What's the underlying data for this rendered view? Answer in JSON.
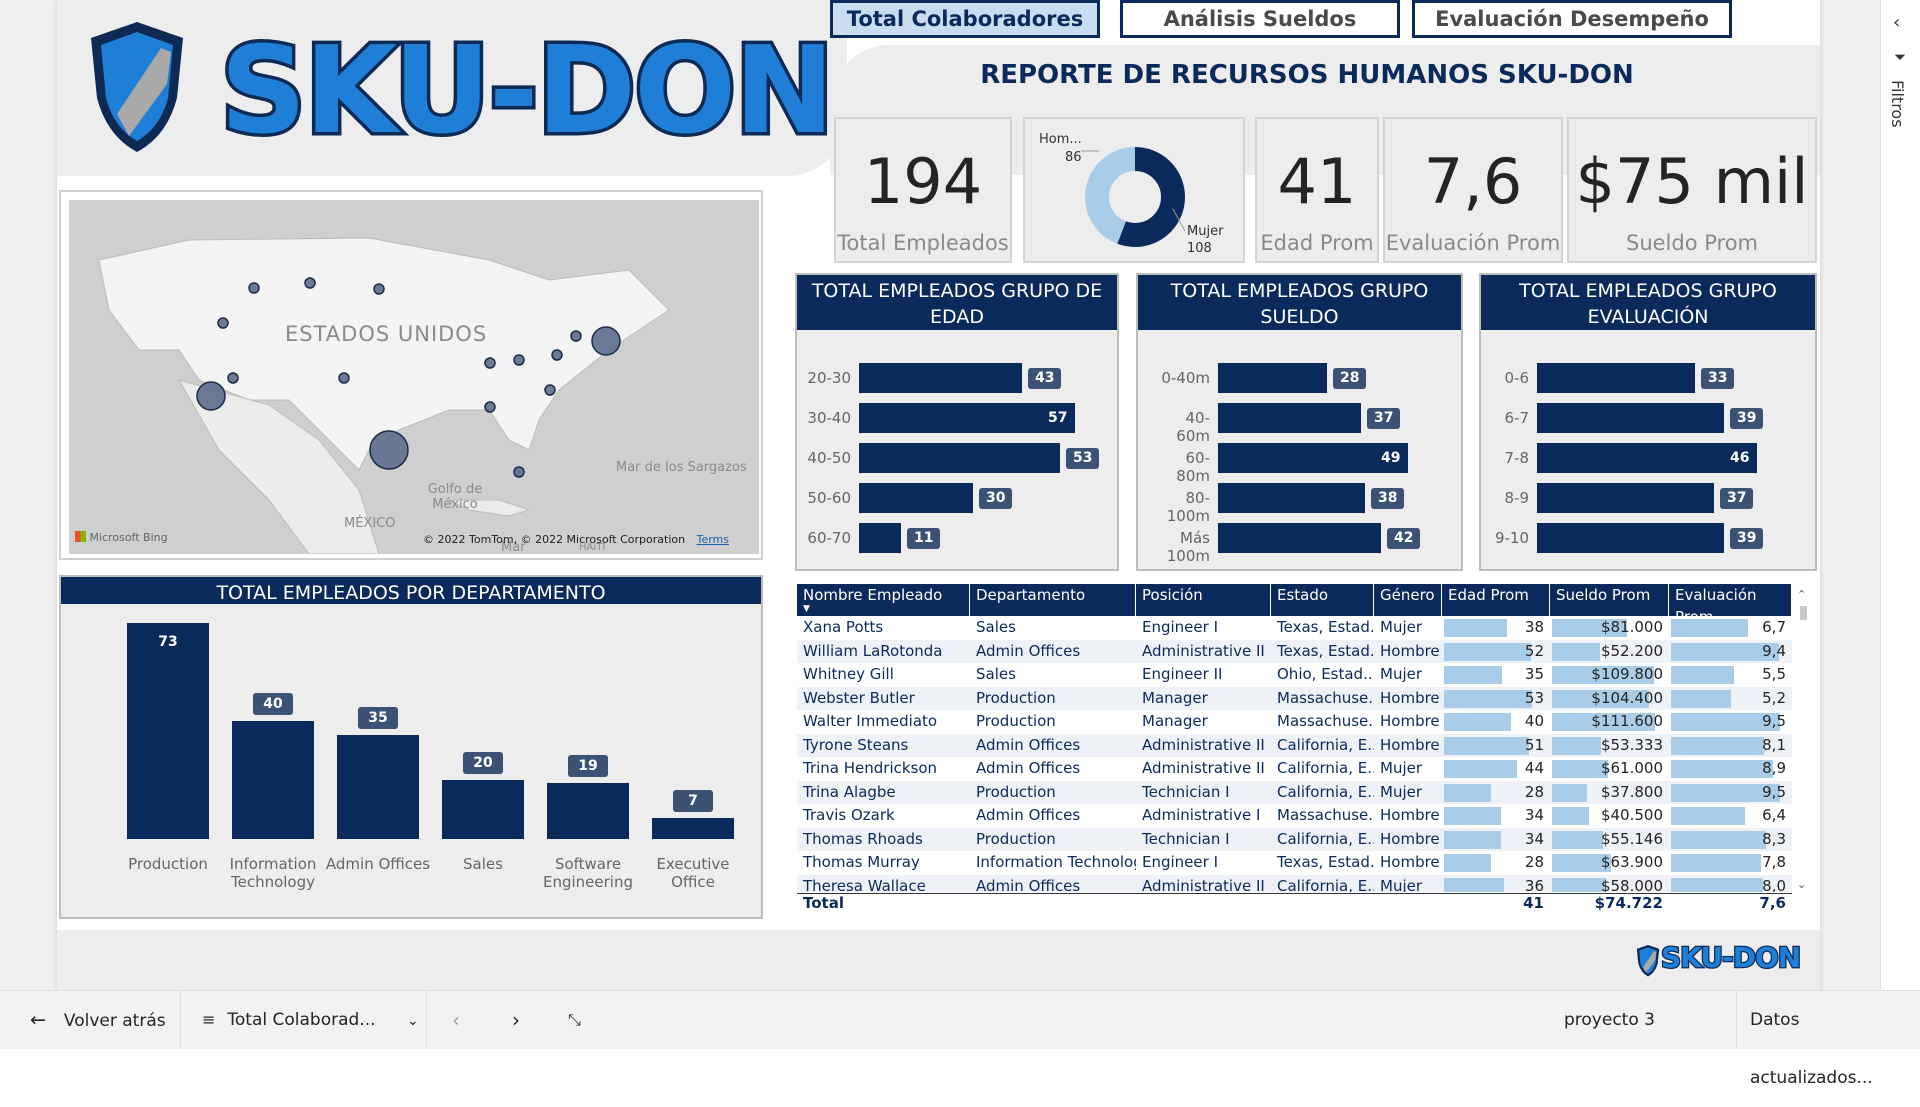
{
  "tabs": [
    {
      "label": "Total Colaboradores",
      "active": true
    },
    {
      "label": "Análisis Sueldos",
      "active": false
    },
    {
      "label": "Evaluación Desempeño",
      "active": false
    }
  ],
  "brand": {
    "logo_text": "SKU-DON",
    "footer_logo_text": "SKU-DON",
    "accent": "#1f7ed6",
    "navy": "#0b2a5c"
  },
  "report_title": "REPORTE DE RECURSOS HUMANOS SKU-DON",
  "cards": {
    "total_empleados": {
      "value": "194",
      "label": "Total Empleados"
    },
    "edad_prom": {
      "value": "41",
      "label": "Edad Prom"
    },
    "evaluacion_prom": {
      "value": "7,6",
      "label": "Evaluación Prom"
    },
    "sueldo_prom": {
      "value": "$75 mil",
      "label": "Sueldo Prom"
    }
  },
  "gender_donut": {
    "hombre_label": "Hom...",
    "hombre_value": "86",
    "hombre": 86,
    "mujer_label": "Mujer",
    "mujer_value": "108",
    "mujer": 108
  },
  "map": {
    "country_label": "ESTADOS UNIDOS",
    "mexico_label": "MÉXICO",
    "gulf_label": "Golfo de México",
    "sargazos_label": "Mar de los Sargazos",
    "haiti_label": "HAITÍ",
    "mar_label": "Mar",
    "copyright": "© 2022 TomTom, © 2022 Microsoft Corporation",
    "terms": "Terms",
    "bing": "Microsoft Bing"
  },
  "age_panel": {
    "title": "TOTAL EMPLEADOS GRUPO DE EDAD"
  },
  "salary_panel": {
    "title": "TOTAL EMPLEADOS GRUPO SUELDO"
  },
  "eval_panel": {
    "title": "TOTAL EMPLEADOS GRUPO EVALUACIÓN"
  },
  "dept_panel": {
    "title": "TOTAL EMPLEADOS POR DEPARTAMENTO"
  },
  "chart_data": [
    {
      "type": "bar",
      "title": "TOTAL EMPLEADOS GRUPO DE EDAD",
      "orientation": "horizontal",
      "categories": [
        "20-30",
        "30-40",
        "40-50",
        "50-60",
        "60-70"
      ],
      "values": [
        43,
        57,
        53,
        30,
        11
      ]
    },
    {
      "type": "bar",
      "title": "TOTAL EMPLEADOS GRUPO SUELDO",
      "orientation": "horizontal",
      "categories": [
        "0-40m",
        "40-60m",
        "60-80m",
        "80-100m",
        "Más 100m"
      ],
      "values": [
        28,
        37,
        49,
        38,
        42
      ]
    },
    {
      "type": "bar",
      "title": "TOTAL EMPLEADOS GRUPO EVALUACIÓN",
      "orientation": "horizontal",
      "categories": [
        "0-6",
        "6-7",
        "7-8",
        "8-9",
        "9-10"
      ],
      "values": [
        33,
        39,
        46,
        37,
        39
      ]
    },
    {
      "type": "bar",
      "title": "TOTAL EMPLEADOS POR DEPARTAMENTO",
      "orientation": "vertical",
      "categories": [
        "Production",
        "Information Technology",
        "Admin Offices",
        "Sales",
        "Software Engineering",
        "Executive Office"
      ],
      "values": [
        73,
        40,
        35,
        20,
        19,
        7
      ]
    },
    {
      "type": "pie",
      "title": "",
      "categories": [
        "Hombre",
        "Mujer"
      ],
      "values": [
        86,
        108
      ]
    }
  ],
  "table": {
    "columns": [
      "Nombre Empleado",
      "Departamento",
      "Posición",
      "Estado",
      "Género",
      "Edad Prom",
      "Sueldo Prom",
      "Evaluación Prom"
    ],
    "rows": [
      [
        "Xana Potts",
        "Sales",
        "Engineer I",
        "Texas, Estad...",
        "Mujer",
        "38",
        "$81.000",
        "6,7"
      ],
      [
        "William LaRotonda",
        "Admin Offices",
        "Administrative II",
        "Texas, Estad...",
        "Hombre",
        "52",
        "$52.200",
        "9,4"
      ],
      [
        "Whitney Gill",
        "Sales",
        "Engineer II",
        "Ohio, Estad...",
        "Mujer",
        "35",
        "$109.800",
        "5,5"
      ],
      [
        "Webster Butler",
        "Production",
        "Manager",
        "Massachuse...",
        "Hombre",
        "53",
        "$104.400",
        "5,2"
      ],
      [
        "Walter Immediato",
        "Production",
        "Manager",
        "Massachuse...",
        "Hombre",
        "40",
        "$111.600",
        "9,5"
      ],
      [
        "Tyrone Steans",
        "Admin Offices",
        "Administrative II",
        "California, E...",
        "Hombre",
        "51",
        "$53.333",
        "8,1"
      ],
      [
        "Trina Hendrickson",
        "Admin Offices",
        "Administrative II",
        "California, E...",
        "Mujer",
        "44",
        "$61.000",
        "8,9"
      ],
      [
        "Trina Alagbe",
        "Production",
        "Technician I",
        "California, E...",
        "Mujer",
        "28",
        "$37.800",
        "9,5"
      ],
      [
        "Travis Ozark",
        "Admin Offices",
        "Administrative I",
        "Massachuse...",
        "Hombre",
        "34",
        "$40.500",
        "6,4"
      ],
      [
        "Thomas Rhoads",
        "Production",
        "Technician I",
        "California, E...",
        "Hombre",
        "34",
        "$55.146",
        "8,3"
      ],
      [
        "Thomas Murray",
        "Information Technology",
        "Engineer I",
        "Texas, Estad...",
        "Hombre",
        "28",
        "$63.900",
        "7,8"
      ],
      [
        "Theresa Wallace",
        "Admin Offices",
        "Administrative II",
        "California, E...",
        "Mujer",
        "36",
        "$58.000",
        "8,0"
      ]
    ],
    "total": {
      "label": "Total",
      "edad": "41",
      "sueldo": "$74.722",
      "evaluacion": "7,6"
    }
  },
  "bottom_bar": {
    "back": "Volver atrás",
    "page": "Total Colaborad...",
    "project": "proyecto 3",
    "updated": "Datos actualizados..."
  },
  "filters_label": "Filtros"
}
